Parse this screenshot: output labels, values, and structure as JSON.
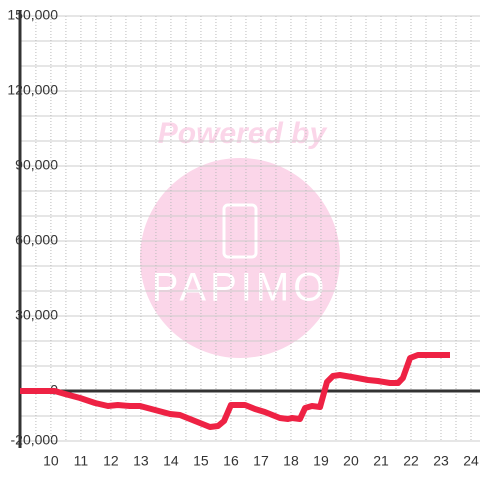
{
  "chart_data": {
    "type": "line",
    "watermark": {
      "title": "Powered by",
      "brand": "PAPIMO"
    },
    "x": [
      8.97,
      10.13,
      10.47,
      10.97,
      11.47,
      11.9,
      12.23,
      12.63,
      12.97,
      13.47,
      13.97,
      14.3,
      14.8,
      15.3,
      15.57,
      15.77,
      16.0,
      16.47,
      16.8,
      17.13,
      17.63,
      17.9,
      18.03,
      18.3,
      18.47,
      18.7,
      18.97,
      19.2,
      19.4,
      19.63,
      20.03,
      20.57,
      20.9,
      21.3,
      21.57,
      21.73,
      21.97,
      22.23,
      23.3
    ],
    "series": [
      {
        "color": "#ee2244",
        "values": [
          0,
          0,
          -1200,
          -2800,
          -4800,
          -6000,
          -5600,
          -6000,
          -6000,
          -7600,
          -9200,
          -9600,
          -12000,
          -14400,
          -14000,
          -12000,
          -5600,
          -5600,
          -7200,
          -8400,
          -10800,
          -11200,
          -10800,
          -11200,
          -6800,
          -6000,
          -6400,
          3600,
          6000,
          6400,
          5600,
          4400,
          4000,
          3200,
          3200,
          5200,
          13200,
          14400,
          14400
        ]
      }
    ],
    "xlim": [
      8.97,
      24.3
    ],
    "xticks": [
      10,
      11,
      12,
      13,
      14,
      15,
      16,
      17,
      18,
      19,
      20,
      21,
      22,
      23,
      24
    ],
    "xminorticks": [
      9.5,
      10.5,
      11.5,
      12.5,
      13.5,
      14.5,
      15.5,
      16.5,
      17.5,
      18.5,
      19.5,
      20.5,
      21.5,
      22.5,
      23.5
    ],
    "ylim": [
      -20000,
      150000
    ],
    "yticks": [
      {
        "value": -20000,
        "label": "-20,000"
      },
      0,
      {
        "value": 30000,
        "label": "30,000"
      },
      {
        "value": 60000,
        "label": "60,000"
      },
      {
        "value": 90000,
        "label": "90,000"
      },
      {
        "value": 120000,
        "label": "120,000"
      },
      {
        "value": 150000,
        "label": "150,000"
      }
    ],
    "yminorticks": [
      -10000,
      10000,
      20000,
      40000,
      50000,
      70000,
      80000,
      100000,
      110000,
      130000,
      140000
    ],
    "grid": true
  }
}
